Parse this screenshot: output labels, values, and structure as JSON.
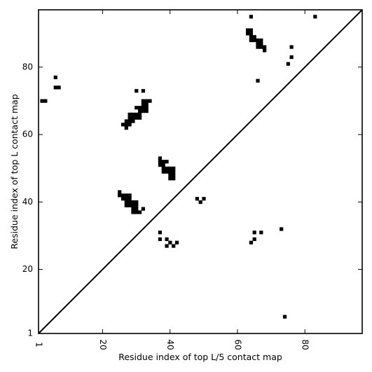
{
  "chart_data": {
    "type": "heatmap",
    "title": "",
    "xlabel": "Residue index of top L/5 contact map",
    "ylabel": "Residue index of top L contact map",
    "xlim": [
      1,
      97
    ],
    "ylim": [
      1,
      97
    ],
    "x_ticks": [
      1,
      20,
      40,
      60,
      80
    ],
    "y_ticks": [
      1,
      20,
      40,
      60,
      80
    ],
    "diagonal": true,
    "cell_color": "#000000",
    "upper_triangle_cells": [
      [
        64,
        95
      ],
      [
        83,
        95
      ],
      [
        63,
        91
      ],
      [
        64,
        91
      ],
      [
        63,
        90
      ],
      [
        64,
        90
      ],
      [
        64,
        89
      ],
      [
        65,
        89
      ],
      [
        64,
        88
      ],
      [
        65,
        88
      ],
      [
        66,
        88
      ],
      [
        67,
        88
      ],
      [
        66,
        87
      ],
      [
        67,
        87
      ],
      [
        66,
        86
      ],
      [
        67,
        86
      ],
      [
        68,
        86
      ],
      [
        68,
        85
      ],
      [
        76,
        86
      ],
      [
        76,
        83
      ],
      [
        75,
        81
      ],
      [
        66,
        76
      ],
      [
        6,
        77
      ],
      [
        6,
        74
      ],
      [
        7,
        74
      ],
      [
        2,
        70
      ],
      [
        3,
        70
      ],
      [
        30,
        73
      ],
      [
        32,
        73
      ],
      [
        32,
        70
      ],
      [
        33,
        70
      ],
      [
        34,
        70
      ],
      [
        32,
        69
      ],
      [
        33,
        69
      ],
      [
        31,
        68
      ],
      [
        32,
        68
      ],
      [
        33,
        68
      ],
      [
        30,
        68
      ],
      [
        31,
        67
      ],
      [
        32,
        67
      ],
      [
        33,
        67
      ],
      [
        28,
        66
      ],
      [
        29,
        66
      ],
      [
        30,
        66
      ],
      [
        31,
        66
      ],
      [
        28,
        65
      ],
      [
        29,
        65
      ],
      [
        30,
        65
      ],
      [
        31,
        65
      ],
      [
        27,
        64
      ],
      [
        28,
        64
      ],
      [
        29,
        64
      ],
      [
        27,
        63
      ],
      [
        28,
        63
      ],
      [
        26,
        63
      ],
      [
        27,
        62
      ],
      [
        37,
        53
      ],
      [
        37,
        52
      ],
      [
        38,
        52
      ],
      [
        39,
        52
      ],
      [
        37,
        51
      ],
      [
        38,
        51
      ],
      [
        38,
        50
      ],
      [
        39,
        50
      ],
      [
        40,
        50
      ],
      [
        41,
        50
      ],
      [
        38,
        49
      ],
      [
        39,
        49
      ],
      [
        40,
        49
      ],
      [
        41,
        49
      ],
      [
        40,
        48
      ],
      [
        41,
        48
      ],
      [
        40,
        47
      ],
      [
        41,
        47
      ]
    ],
    "lower_triangle_cells": [
      [
        25,
        43
      ],
      [
        25,
        42
      ],
      [
        26,
        42
      ],
      [
        27,
        42
      ],
      [
        28,
        42
      ],
      [
        26,
        41
      ],
      [
        27,
        41
      ],
      [
        28,
        41
      ],
      [
        27,
        40
      ],
      [
        28,
        40
      ],
      [
        29,
        40
      ],
      [
        30,
        40
      ],
      [
        27,
        39
      ],
      [
        28,
        39
      ],
      [
        29,
        39
      ],
      [
        30,
        39
      ],
      [
        29,
        38
      ],
      [
        30,
        38
      ],
      [
        32,
        38
      ],
      [
        29,
        37
      ],
      [
        30,
        37
      ],
      [
        31,
        37
      ],
      [
        48,
        41
      ],
      [
        50,
        41
      ],
      [
        49,
        40
      ],
      [
        37,
        31
      ],
      [
        37,
        29
      ],
      [
        39,
        29
      ],
      [
        40,
        28
      ],
      [
        42,
        28
      ],
      [
        39,
        27
      ],
      [
        41,
        27
      ],
      [
        65,
        31
      ],
      [
        67,
        31
      ],
      [
        73,
        32
      ],
      [
        65,
        29
      ],
      [
        64,
        28
      ],
      [
        74,
        6
      ]
    ]
  }
}
